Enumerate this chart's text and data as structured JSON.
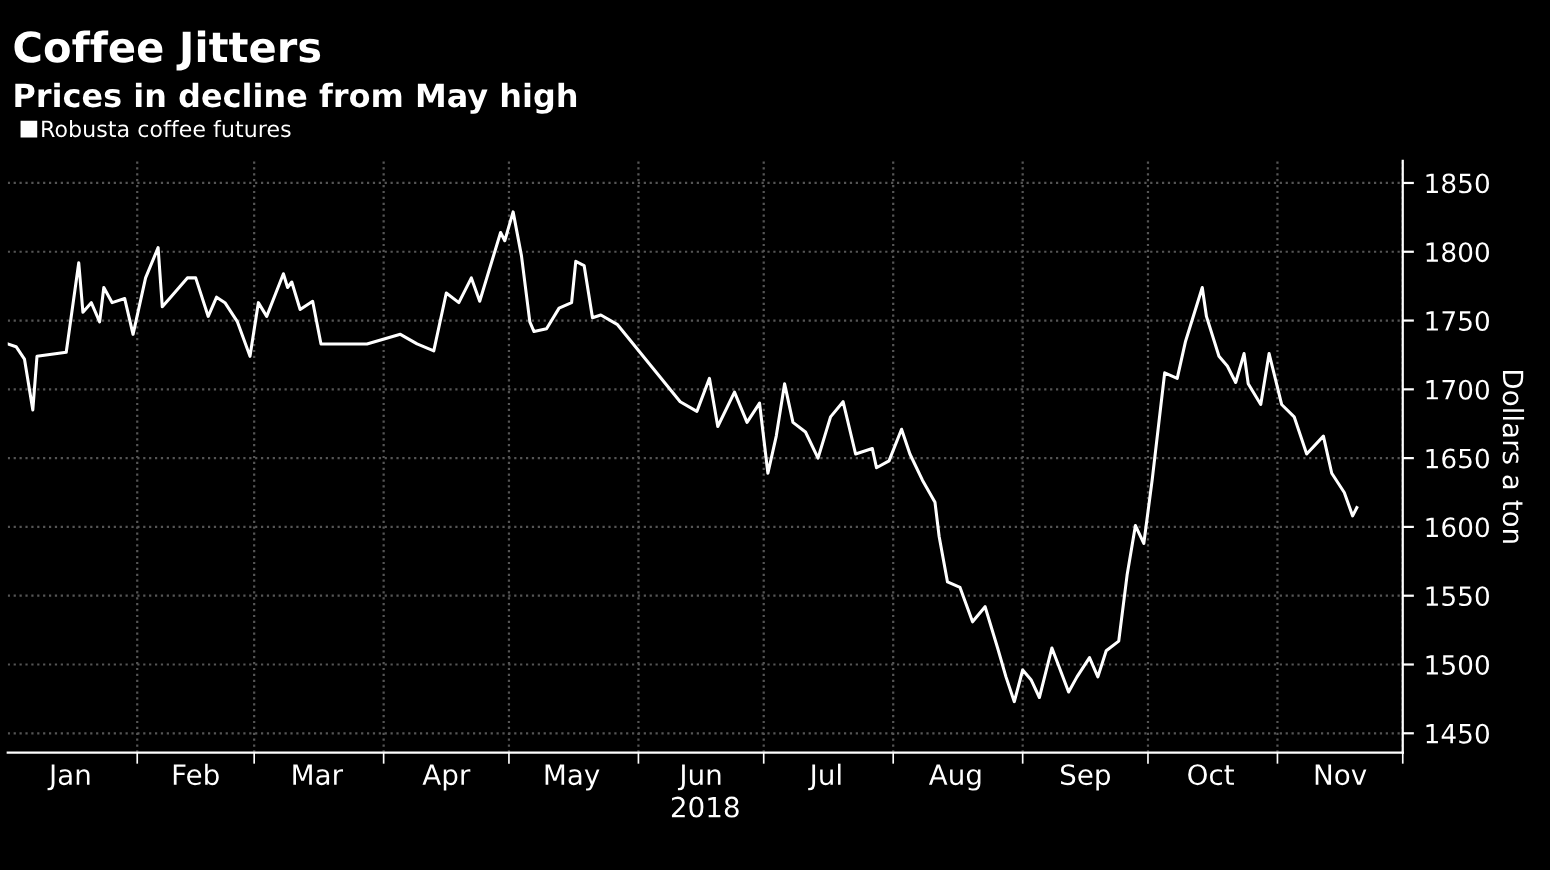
{
  "chart_data": {
    "type": "line",
    "title": "Coffee Jitters",
    "subtitle": "Prices in decline from May high",
    "xlabel": "2018",
    "ylabel": "Dollars a ton",
    "legend": "top left",
    "grid": true,
    "marker": "none",
    "line_style": "solid",
    "xlim": [
      "2018-01-01",
      "2018-12-01"
    ],
    "ylim": [
      1436,
      1866
    ],
    "yticks": [
      1450,
      1500,
      1550,
      1600,
      1650,
      1700,
      1750,
      1800,
      1850
    ],
    "xticks": [
      {
        "value": "2018-01-16",
        "label": "Jan"
      },
      {
        "value": "2018-02-01",
        "label": null
      },
      {
        "value": "2018-02-15",
        "label": "Feb"
      },
      {
        "value": "2018-03-01",
        "label": null
      },
      {
        "value": "2018-03-16",
        "label": "Mar"
      },
      {
        "value": "2018-04-01",
        "label": null
      },
      {
        "value": "2018-04-16",
        "label": "Apr"
      },
      {
        "value": "2018-05-01",
        "label": null
      },
      {
        "value": "2018-05-16",
        "label": "May"
      },
      {
        "value": "2018-06-01",
        "label": null
      },
      {
        "value": "2018-06-16",
        "label": "Jun"
      },
      {
        "value": "2018-07-01",
        "label": null
      },
      {
        "value": "2018-07-16",
        "label": "Jul"
      },
      {
        "value": "2018-08-01",
        "label": null
      },
      {
        "value": "2018-08-16",
        "label": "Aug"
      },
      {
        "value": "2018-09-01",
        "label": null
      },
      {
        "value": "2018-09-16",
        "label": "Sep"
      },
      {
        "value": "2018-10-01",
        "label": null
      },
      {
        "value": "2018-10-16",
        "label": "Oct"
      },
      {
        "value": "2018-11-01",
        "label": null
      },
      {
        "value": "2018-11-16",
        "label": "Nov"
      },
      {
        "value": "2018-12-01",
        "label": null
      }
    ],
    "series": [
      {
        "name": "Robusta coffee futures",
        "color": "#ffffff",
        "x": [
          "2018-01-01",
          "2018-01-03",
          "2018-01-05",
          "2018-01-07",
          "2018-01-08",
          "2018-01-15",
          "2018-01-18",
          "2018-01-19",
          "2018-01-21",
          "2018-01-23",
          "2018-01-24",
          "2018-01-26",
          "2018-01-29",
          "2018-01-31",
          "2018-02-03",
          "2018-02-06",
          "2018-02-07",
          "2018-02-09",
          "2018-02-13",
          "2018-02-15",
          "2018-02-18",
          "2018-02-20",
          "2018-02-22",
          "2018-02-25",
          "2018-02-28",
          "2018-03-02",
          "2018-03-04",
          "2018-03-08",
          "2018-03-09",
          "2018-03-10",
          "2018-03-12",
          "2018-03-15",
          "2018-03-17",
          "2018-03-28",
          "2018-04-05",
          "2018-04-09",
          "2018-04-13",
          "2018-04-16",
          "2018-04-19",
          "2018-04-22",
          "2018-04-24",
          "2018-04-29",
          "2018-04-30",
          "2018-05-02",
          "2018-05-04",
          "2018-05-06",
          "2018-05-07",
          "2018-05-10",
          "2018-05-13",
          "2018-05-16",
          "2018-05-17",
          "2018-05-19",
          "2018-05-21",
          "2018-05-23",
          "2018-05-27",
          "2018-06-11",
          "2018-06-15",
          "2018-06-18",
          "2018-06-20",
          "2018-06-24",
          "2018-06-27",
          "2018-06-30",
          "2018-07-02",
          "2018-07-04",
          "2018-07-06",
          "2018-07-08",
          "2018-07-11",
          "2018-07-14",
          "2018-07-17",
          "2018-07-20",
          "2018-07-23",
          "2018-07-27",
          "2018-07-28",
          "2018-07-31",
          "2018-08-03",
          "2018-08-05",
          "2018-08-08",
          "2018-08-11",
          "2018-08-12",
          "2018-08-14",
          "2018-08-17",
          "2018-08-20",
          "2018-08-23",
          "2018-08-26",
          "2018-08-28",
          "2018-08-30",
          "2018-09-01",
          "2018-09-03",
          "2018-09-05",
          "2018-09-08",
          "2018-09-12",
          "2018-09-14",
          "2018-09-17",
          "2018-09-19",
          "2018-09-21",
          "2018-09-24",
          "2018-09-26",
          "2018-09-28",
          "2018-09-30",
          "2018-10-02",
          "2018-10-05",
          "2018-10-08",
          "2018-10-10",
          "2018-10-14",
          "2018-10-15",
          "2018-10-18",
          "2018-10-20",
          "2018-10-22",
          "2018-10-24",
          "2018-10-25",
          "2018-10-28",
          "2018-10-30",
          "2018-11-02",
          "2018-11-05",
          "2018-11-08",
          "2018-11-12",
          "2018-11-14",
          "2018-11-17",
          "2018-11-19",
          "2018-11-20"
        ],
        "values": [
          1733,
          1731,
          1722,
          1685,
          1724,
          1727,
          1792,
          1756,
          1763,
          1749,
          1774,
          1763,
          1766,
          1740,
          1781,
          1803,
          1760,
          1767,
          1781,
          1781,
          1753,
          1767,
          1763,
          1749,
          1724,
          1763,
          1753,
          1784,
          1774,
          1778,
          1758,
          1764,
          1733,
          1733,
          1740,
          1733,
          1728,
          1770,
          1763,
          1781,
          1764,
          1814,
          1808,
          1829,
          1797,
          1749,
          1742,
          1744,
          1759,
          1763,
          1793,
          1790,
          1752,
          1754,
          1747,
          1691,
          1684,
          1708,
          1673,
          1698,
          1676,
          1690,
          1639,
          1666,
          1704,
          1676,
          1669,
          1650,
          1680,
          1691,
          1653,
          1657,
          1643,
          1648,
          1671,
          1653,
          1634,
          1618,
          1593,
          1560,
          1556,
          1531,
          1542,
          1512,
          1491,
          1473,
          1496,
          1489,
          1476,
          1512,
          1480,
          1491,
          1505,
          1491,
          1510,
          1517,
          1565,
          1601,
          1588,
          1634,
          1712,
          1708,
          1735,
          1774,
          1753,
          1724,
          1717,
          1705,
          1726,
          1704,
          1689,
          1726,
          1689,
          1680,
          1653,
          1666,
          1639,
          1625,
          1608,
          1614
        ]
      }
    ]
  }
}
